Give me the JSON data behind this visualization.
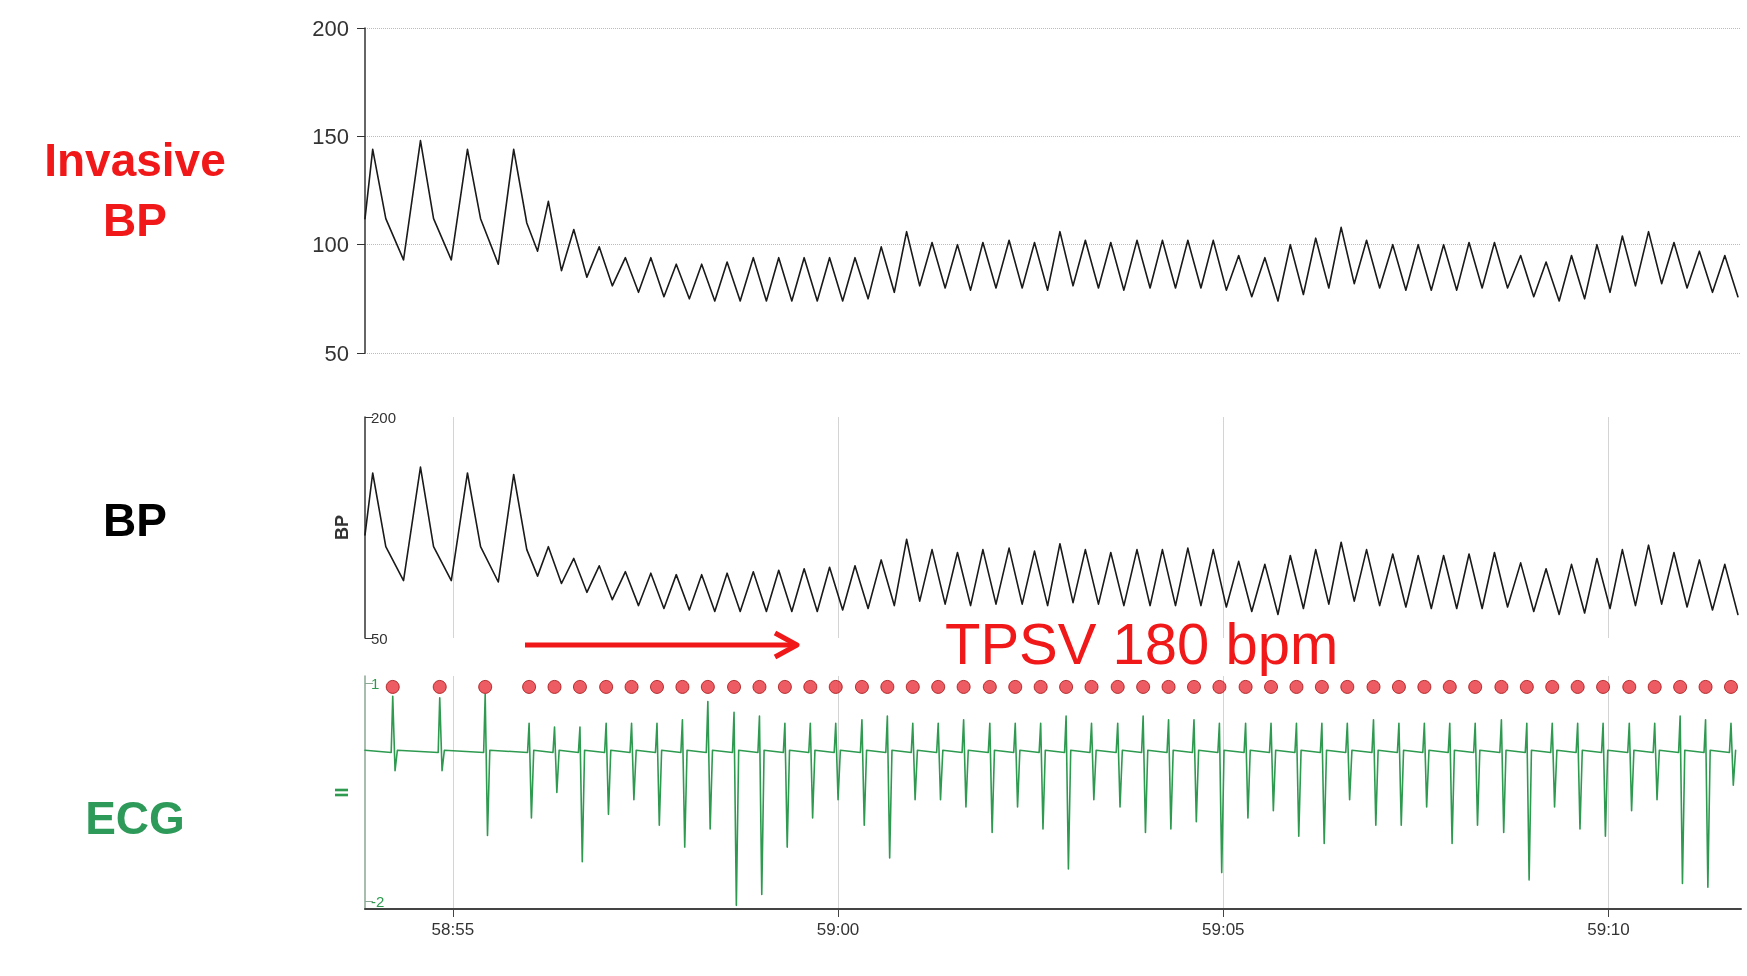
{
  "chart_data": [
    {
      "type": "line",
      "title": "Invasive BP",
      "xlim": [
        3533.86,
        3551.72
      ],
      "ylim": [
        50,
        200
      ],
      "yticks": [
        50,
        100,
        150,
        200
      ],
      "tick_labels": "y",
      "grid": "y",
      "line_style": "solid",
      "series": [
        {
          "color": "#1a1a1a",
          "marker": "none",
          "x": [
            3533.86,
            3533.96,
            3534.13,
            3534.36,
            3534.58,
            3534.75,
            3534.98,
            3535.19,
            3535.36,
            3535.59,
            3535.79,
            3535.96,
            3536.1,
            3536.24,
            3536.41,
            3536.57,
            3536.74,
            3536.9,
            3537.07,
            3537.24,
            3537.41,
            3537.57,
            3537.74,
            3537.9,
            3538.07,
            3538.23,
            3538.4,
            3538.56,
            3538.73,
            3538.9,
            3539.07,
            3539.23,
            3539.4,
            3539.56,
            3539.73,
            3539.89,
            3540.06,
            3540.22,
            3540.39,
            3540.56,
            3540.73,
            3540.89,
            3541.06,
            3541.22,
            3541.39,
            3541.55,
            3541.72,
            3541.88,
            3542.05,
            3542.22,
            3542.39,
            3542.55,
            3542.72,
            3542.88,
            3543.05,
            3543.21,
            3543.38,
            3543.54,
            3543.71,
            3543.88,
            3544.05,
            3544.21,
            3544.38,
            3544.54,
            3544.71,
            3544.87,
            3545.04,
            3545.2,
            3545.37,
            3545.54,
            3545.71,
            3545.87,
            3546.04,
            3546.2,
            3546.37,
            3546.53,
            3546.7,
            3546.86,
            3547.03,
            3547.2,
            3547.37,
            3547.53,
            3547.7,
            3547.86,
            3548.03,
            3548.19,
            3548.36,
            3548.52,
            3548.69,
            3548.86,
            3549.03,
            3549.19,
            3549.36,
            3549.52,
            3549.69,
            3549.85,
            3550.02,
            3550.18,
            3550.35,
            3550.52,
            3550.69,
            3550.85,
            3551.02,
            3551.18,
            3551.35,
            3551.51,
            3551.68
          ],
          "values": [
            112,
            144,
            112,
            93,
            148,
            112,
            93,
            144,
            112,
            91,
            144,
            110,
            97,
            120,
            88,
            107,
            85,
            99,
            81,
            94,
            78,
            94,
            76,
            91,
            75,
            91,
            74,
            92,
            74,
            94,
            74,
            94,
            74,
            94,
            74,
            94,
            74,
            94,
            75,
            99,
            78,
            106,
            81,
            101,
            80,
            100,
            79,
            101,
            80,
            102,
            80,
            101,
            79,
            106,
            81,
            102,
            80,
            101,
            79,
            102,
            80,
            102,
            80,
            102,
            80,
            102,
            79,
            95,
            76,
            94,
            74,
            100,
            77,
            103,
            80,
            108,
            82,
            102,
            80,
            100,
            79,
            100,
            79,
            100,
            79,
            101,
            80,
            101,
            80,
            95,
            76,
            92,
            74,
            95,
            75,
            100,
            78,
            104,
            81,
            106,
            82,
            101,
            80,
            97,
            78,
            95,
            76
          ]
        }
      ]
    },
    {
      "type": "line",
      "title": "BP",
      "ylabel": "BP",
      "xlim": [
        3533.86,
        3551.72
      ],
      "ylim": [
        50,
        200
      ],
      "yticks": [
        50,
        200
      ],
      "xticks": [
        {
          "value": 3535,
          "label": null
        },
        {
          "value": 3540,
          "label": null
        },
        {
          "value": 3545,
          "label": null
        },
        {
          "value": 3550,
          "label": null
        }
      ],
      "tick_labels": "y",
      "grid": "x",
      "line_style": "solid",
      "annotations": [
        "TPSV 180 bpm"
      ],
      "series": [
        {
          "color": "#1a1a1a",
          "marker": "none",
          "x": [
            3533.86,
            3533.96,
            3534.13,
            3534.36,
            3534.58,
            3534.75,
            3534.98,
            3535.19,
            3535.36,
            3535.59,
            3535.79,
            3535.96,
            3536.1,
            3536.24,
            3536.41,
            3536.57,
            3536.74,
            3536.9,
            3537.07,
            3537.24,
            3537.41,
            3537.57,
            3537.74,
            3537.9,
            3538.07,
            3538.23,
            3538.4,
            3538.56,
            3538.73,
            3538.9,
            3539.07,
            3539.23,
            3539.4,
            3539.56,
            3539.73,
            3539.89,
            3540.06,
            3540.22,
            3540.39,
            3540.56,
            3540.73,
            3540.89,
            3541.06,
            3541.22,
            3541.39,
            3541.55,
            3541.72,
            3541.88,
            3542.05,
            3542.22,
            3542.39,
            3542.55,
            3542.72,
            3542.88,
            3543.05,
            3543.21,
            3543.38,
            3543.54,
            3543.71,
            3543.88,
            3544.05,
            3544.21,
            3544.38,
            3544.54,
            3544.71,
            3544.87,
            3545.04,
            3545.2,
            3545.37,
            3545.54,
            3545.71,
            3545.87,
            3546.04,
            3546.2,
            3546.37,
            3546.53,
            3546.7,
            3546.86,
            3547.03,
            3547.2,
            3547.37,
            3547.53,
            3547.7,
            3547.86,
            3548.03,
            3548.19,
            3548.36,
            3548.52,
            3548.69,
            3548.86,
            3549.03,
            3549.19,
            3549.36,
            3549.52,
            3549.69,
            3549.85,
            3550.02,
            3550.18,
            3550.35,
            3550.52,
            3550.69,
            3550.85,
            3551.02,
            3551.18,
            3551.35,
            3551.51,
            3551.68
          ],
          "values": [
            120,
            162,
            112,
            89,
            166,
            112,
            89,
            162,
            112,
            88,
            161,
            110,
            92,
            112,
            87,
            104,
            81,
            99,
            76,
            95,
            72,
            94,
            70,
            93,
            69,
            93,
            68,
            94,
            68,
            95,
            68,
            96,
            68,
            97,
            68,
            98,
            69,
            99,
            70,
            103,
            72,
            117,
            75,
            110,
            73,
            108,
            72,
            110,
            73,
            111,
            73,
            109,
            72,
            114,
            74,
            110,
            73,
            108,
            72,
            110,
            72,
            110,
            72,
            111,
            72,
            110,
            71,
            102,
            68,
            100,
            66,
            106,
            70,
            110,
            73,
            115,
            75,
            110,
            72,
            107,
            71,
            106,
            70,
            106,
            70,
            107,
            70,
            108,
            71,
            101,
            68,
            97,
            66,
            100,
            67,
            104,
            70,
            110,
            72,
            113,
            73,
            108,
            71,
            103,
            69,
            100,
            66
          ]
        }
      ]
    },
    {
      "type": "line",
      "title": "ECG",
      "ylabel": "II",
      "xlim": [
        3533.86,
        3551.72
      ],
      "ylim": [
        -2.1,
        1.1
      ],
      "yticks": [
        -2,
        1
      ],
      "xticks": [
        {
          "value": 3535,
          "label": "58:55"
        },
        {
          "value": 3540,
          "label": "59:00"
        },
        {
          "value": 3545,
          "label": "59:05"
        },
        {
          "value": 3550,
          "label": "59:10"
        }
      ],
      "grid": "x",
      "line_style": "solid",
      "series": [
        {
          "color": "#2e9a50",
          "marker": "none",
          "x": [
            3533.86,
            3534.2,
            3534.22,
            3534.25,
            3534.28,
            3534.81,
            3534.83,
            3534.86,
            3534.89,
            3535.4,
            3535.42,
            3535.45,
            3535.48,
            3535.97,
            3535.99,
            3536.02,
            3536.05,
            3536.3,
            3536.32,
            3536.35,
            3536.38,
            3536.63,
            3536.65,
            3536.68,
            3536.71,
            3536.97,
            3536.99,
            3537.02,
            3537.05,
            3537.3,
            3537.32,
            3537.35,
            3537.38,
            3537.63,
            3537.65,
            3537.68,
            3537.71,
            3537.96,
            3537.98,
            3538.01,
            3538.04,
            3538.29,
            3538.31,
            3538.34,
            3538.37,
            3538.63,
            3538.65,
            3538.68,
            3538.71,
            3538.96,
            3538.98,
            3539.01,
            3539.04,
            3539.29,
            3539.31,
            3539.34,
            3539.37,
            3539.62,
            3539.64,
            3539.67,
            3539.7,
            3539.95,
            3539.97,
            3540.0,
            3540.03,
            3540.29,
            3540.31,
            3540.34,
            3540.37,
            3540.62,
            3540.64,
            3540.67,
            3540.7,
            3540.95,
            3540.97,
            3541.0,
            3541.03,
            3541.28,
            3541.3,
            3541.33,
            3541.36,
            3541.61,
            3541.63,
            3541.66,
            3541.69,
            3541.95,
            3541.97,
            3542.0,
            3542.03,
            3542.28,
            3542.3,
            3542.33,
            3542.36,
            3542.61,
            3542.63,
            3542.66,
            3542.69,
            3542.94,
            3542.96,
            3542.99,
            3543.02,
            3543.27,
            3543.29,
            3543.32,
            3543.35,
            3543.61,
            3543.63,
            3543.66,
            3543.69,
            3543.94,
            3543.96,
            3543.99,
            3544.02,
            3544.27,
            3544.29,
            3544.32,
            3544.35,
            3544.6,
            3544.62,
            3544.65,
            3544.68,
            3544.93,
            3544.95,
            3544.98,
            3545.01,
            3545.27,
            3545.29,
            3545.32,
            3545.35,
            3545.6,
            3545.62,
            3545.65,
            3545.68,
            3545.93,
            3545.95,
            3545.98,
            3546.01,
            3546.26,
            3546.28,
            3546.31,
            3546.34,
            3546.59,
            3546.61,
            3546.64,
            3546.67,
            3546.93,
            3546.95,
            3546.98,
            3547.01,
            3547.26,
            3547.28,
            3547.31,
            3547.34,
            3547.59,
            3547.61,
            3547.64,
            3547.67,
            3547.92,
            3547.94,
            3547.97,
            3548.0,
            3548.25,
            3548.27,
            3548.3,
            3548.33,
            3548.59,
            3548.61,
            3548.64,
            3548.67,
            3548.92,
            3548.94,
            3548.97,
            3549.0,
            3549.25,
            3549.27,
            3549.3,
            3549.33,
            3549.58,
            3549.6,
            3549.63,
            3549.66,
            3549.91,
            3549.93,
            3549.96,
            3549.99,
            3550.25,
            3550.27,
            3550.3,
            3550.33,
            3550.58,
            3550.6,
            3550.63,
            3550.66,
            3550.91,
            3550.93,
            3550.96,
            3550.99,
            3551.24,
            3551.26,
            3551.29,
            3551.32,
            3551.57,
            3551.59,
            3551.62,
            3551.65
          ],
          "values": [
            0.08,
            0.05,
            0.82,
            -0.2,
            0.08,
            0.05,
            0.8,
            -0.2,
            0.08,
            0.05,
            0.85,
            -1.09,
            0.08,
            0.05,
            0.45,
            -0.85,
            0.08,
            0.05,
            0.4,
            -0.5,
            0.08,
            0.05,
            0.4,
            -1.45,
            0.08,
            0.05,
            0.45,
            -0.8,
            0.08,
            0.05,
            0.45,
            -0.6,
            0.08,
            0.05,
            0.45,
            -0.95,
            0.08,
            0.05,
            0.5,
            -1.25,
            0.08,
            0.05,
            0.75,
            -1.0,
            0.08,
            0.05,
            0.6,
            -2.05,
            0.08,
            0.05,
            0.55,
            -1.9,
            0.08,
            0.05,
            0.45,
            -1.25,
            0.08,
            0.05,
            0.45,
            -0.85,
            0.08,
            0.05,
            0.45,
            -0.6,
            0.08,
            0.05,
            0.5,
            -0.95,
            0.08,
            0.05,
            0.55,
            -1.4,
            0.08,
            0.05,
            0.45,
            -0.6,
            0.08,
            0.05,
            0.45,
            -0.6,
            0.08,
            0.05,
            0.5,
            -0.7,
            0.08,
            0.05,
            0.45,
            -1.05,
            0.08,
            0.05,
            0.45,
            -0.7,
            0.08,
            0.05,
            0.45,
            -1.0,
            0.08,
            0.05,
            0.55,
            -1.55,
            0.08,
            0.05,
            0.45,
            -0.6,
            0.08,
            0.05,
            0.45,
            -0.7,
            0.08,
            0.05,
            0.55,
            -1.05,
            0.08,
            0.05,
            0.5,
            -1.0,
            0.08,
            0.05,
            0.5,
            -0.9,
            0.08,
            0.05,
            0.45,
            -1.6,
            0.08,
            0.05,
            0.45,
            -0.85,
            0.08,
            0.05,
            0.45,
            -0.75,
            0.08,
            0.05,
            0.45,
            -1.1,
            0.08,
            0.05,
            0.45,
            -1.2,
            0.08,
            0.05,
            0.45,
            -0.6,
            0.08,
            0.05,
            0.5,
            -0.95,
            0.08,
            0.05,
            0.45,
            -0.95,
            0.08,
            0.05,
            0.45,
            -0.7,
            0.08,
            0.05,
            0.45,
            -1.2,
            0.08,
            0.05,
            0.45,
            -0.95,
            0.08,
            0.05,
            0.5,
            -1.05,
            0.08,
            0.05,
            0.45,
            -1.7,
            0.08,
            0.05,
            0.45,
            -0.7,
            0.08,
            0.05,
            0.45,
            -1.0,
            0.08,
            0.05,
            0.45,
            -1.1,
            0.08,
            0.05,
            0.45,
            -0.75,
            0.08,
            0.05,
            0.45,
            -0.6,
            0.08,
            0.05,
            0.55,
            -1.75,
            0.08,
            0.05,
            0.5,
            -1.8,
            0.08,
            0.05,
            0.45,
            -0.4,
            0.08
          ]
        },
        {
          "type": "scatter",
          "color": "#e8323c",
          "marker": "circle",
          "x": [
            3534.22,
            3534.83,
            3535.42,
            3535.99,
            3536.32,
            3536.65,
            3536.99,
            3537.32,
            3537.65,
            3537.98,
            3538.31,
            3538.65,
            3538.98,
            3539.31,
            3539.64,
            3539.97,
            3540.31,
            3540.64,
            3540.97,
            3541.3,
            3541.63,
            3541.97,
            3542.3,
            3542.63,
            3542.96,
            3543.29,
            3543.63,
            3543.96,
            3544.29,
            3544.62,
            3544.95,
            3545.29,
            3545.62,
            3545.95,
            3546.28,
            3546.61,
            3546.95,
            3547.28,
            3547.61,
            3547.94,
            3548.27,
            3548.61,
            3548.94,
            3549.27,
            3549.6,
            3549.93,
            3550.27,
            3550.6,
            3550.93,
            3551.26,
            3551.59
          ],
          "values": [
            0.95,
            0.95,
            0.95,
            0.95,
            0.95,
            0.95,
            0.95,
            0.95,
            0.95,
            0.95,
            0.95,
            0.95,
            0.95,
            0.95,
            0.95,
            0.95,
            0.95,
            0.95,
            0.95,
            0.95,
            0.95,
            0.95,
            0.95,
            0.95,
            0.95,
            0.95,
            0.95,
            0.95,
            0.95,
            0.95,
            0.95,
            0.95,
            0.95,
            0.95,
            0.95,
            0.95,
            0.95,
            0.95,
            0.95,
            0.95,
            0.95,
            0.95,
            0.95,
            0.95,
            0.95,
            0.95,
            0.95,
            0.95,
            0.95,
            0.95,
            0.95
          ]
        }
      ]
    }
  ]
}
